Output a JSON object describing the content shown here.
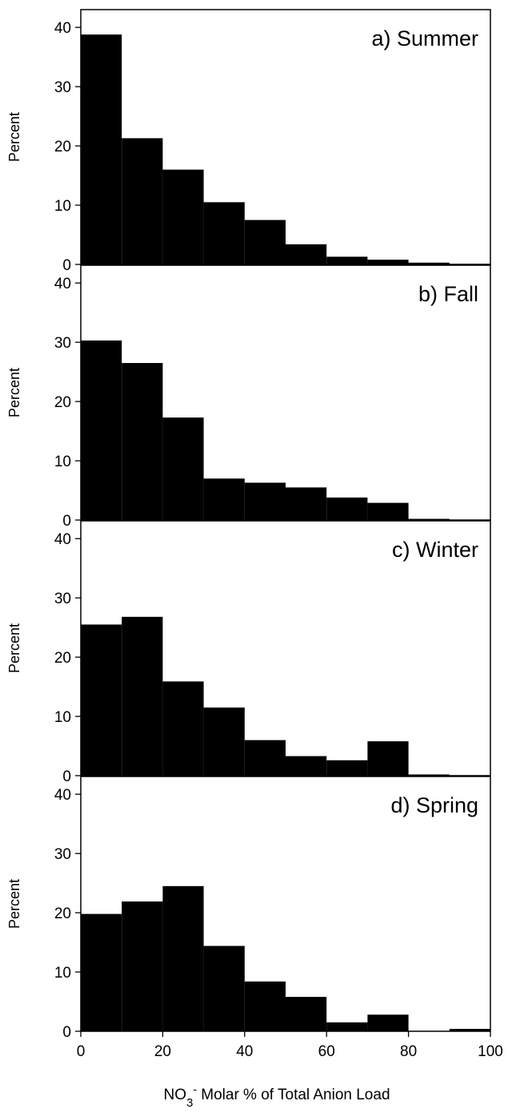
{
  "chart_data": {
    "type": "bar",
    "layout": "four stacked histogram panels sharing one x axis",
    "bins": [
      "0-10",
      "10-20",
      "20-30",
      "30-40",
      "40-50",
      "50-60",
      "60-70",
      "70-80",
      "80-90",
      "90-100"
    ],
    "bin_edges": [
      0,
      10,
      20,
      30,
      40,
      50,
      60,
      70,
      80,
      90,
      100
    ],
    "xlim": [
      0,
      100
    ],
    "ylim": [
      0,
      43
    ],
    "x_ticks": [
      "0",
      "20",
      "40",
      "60",
      "80",
      "100"
    ],
    "y_ticks": [
      "0",
      "10",
      "20",
      "30",
      "40"
    ],
    "xlabel": {
      "prefix": "NO",
      "subscript": "3",
      "superscript": "-",
      "suffix": " Molar % of Total Anion Load"
    },
    "ylabel": "Percent",
    "bar_color": "#000000",
    "grid": false,
    "panels": [
      {
        "title": "a) Summer",
        "values": [
          38.8,
          21.3,
          16.0,
          10.5,
          7.5,
          3.4,
          1.3,
          0.8,
          0.3,
          0.1
        ]
      },
      {
        "title": "b) Fall",
        "values": [
          30.3,
          26.5,
          17.3,
          7.0,
          6.3,
          5.5,
          3.8,
          2.9,
          0.2,
          0.0
        ]
      },
      {
        "title": "c) Winter",
        "values": [
          25.5,
          26.8,
          15.9,
          11.5,
          6.0,
          3.3,
          2.6,
          5.8,
          0.2,
          0.0
        ]
      },
      {
        "title": "d) Spring",
        "values": [
          19.8,
          21.9,
          24.5,
          14.4,
          8.4,
          5.8,
          1.5,
          2.8,
          0.0,
          0.4
        ]
      }
    ]
  }
}
